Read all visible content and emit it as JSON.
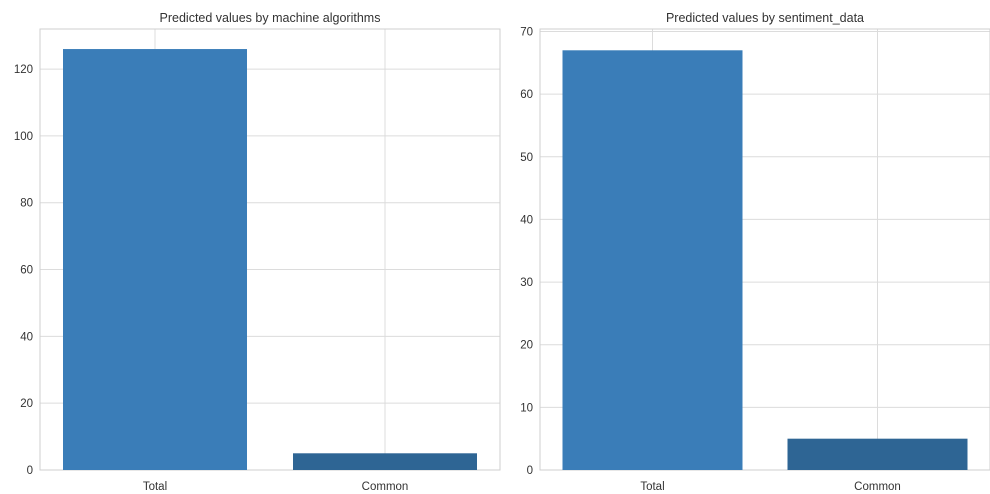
{
  "chart_data": [
    {
      "type": "bar",
      "title": "Predicted values by machine algorithms",
      "xlabel": "",
      "ylabel": "",
      "categories": [
        "Total",
        "Common"
      ],
      "values": [
        126,
        5
      ],
      "colors": [
        "#3a7db8",
        "#2e6594"
      ],
      "ylim": [
        0,
        132
      ],
      "yticks": [
        "0",
        "20",
        "40",
        "60",
        "80",
        "100",
        "120"
      ],
      "grid": true,
      "legend": "none"
    },
    {
      "type": "bar",
      "title": "Predicted values by sentiment_data",
      "xlabel": "",
      "ylabel": "",
      "categories": [
        "Total",
        "Common"
      ],
      "values": [
        67,
        5
      ],
      "colors": [
        "#3a7db8",
        "#2e6594"
      ],
      "ylim": [
        0,
        70.4
      ],
      "yticks": [
        "0",
        "10",
        "20",
        "30",
        "40",
        "50",
        "60",
        "70"
      ],
      "grid": true,
      "legend": "none"
    }
  ]
}
